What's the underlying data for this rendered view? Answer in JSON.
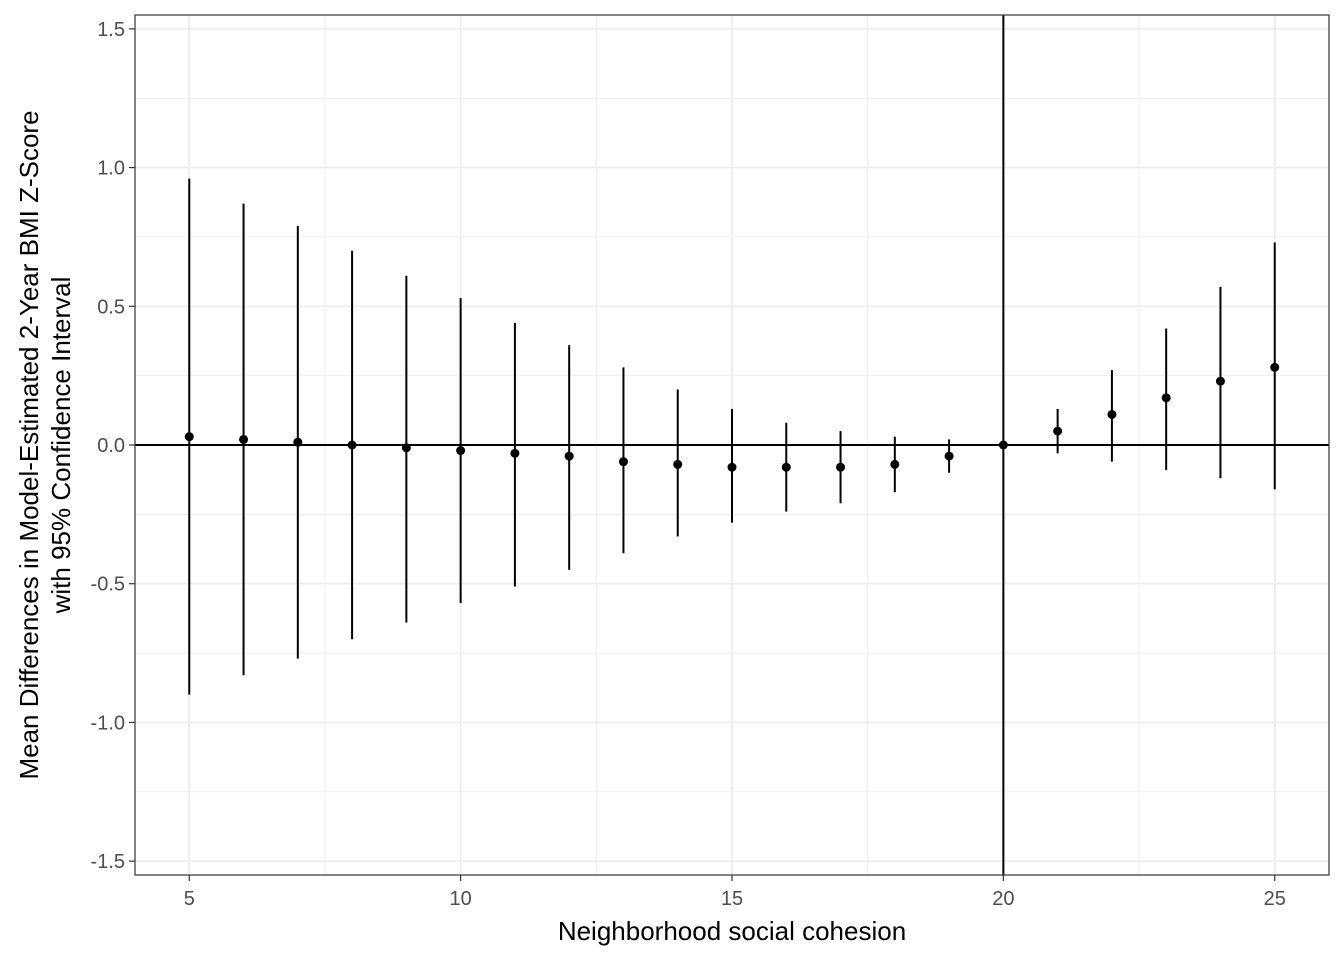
{
  "chart_data": {
    "type": "scatter",
    "title": "",
    "xlabel": "Neighborhood social cohesion",
    "ylabel_lines": [
      "Mean Differences in Model-Estimated 2-Year BMI Z-Score",
      "with 95% Confidence Interval"
    ],
    "xlim": [
      4,
      26
    ],
    "ylim": [
      -1.55,
      1.55
    ],
    "x_ticks": [
      5,
      10,
      15,
      20,
      25
    ],
    "x_tick_labels": [
      "5",
      "10",
      "15",
      "20",
      "25"
    ],
    "y_ticks": [
      -1.5,
      -1.0,
      -0.5,
      0.0,
      0.5,
      1.0,
      1.5
    ],
    "y_tick_labels": [
      "-1.5",
      "-1.0",
      "-0.5",
      "0.0",
      "0.5",
      "1.0",
      "1.5"
    ],
    "grid": true,
    "reference_lines": {
      "vertical_x": 20,
      "horizontal_y": 0
    },
    "colors": {
      "points": "#000000",
      "grid": "#ebebeb",
      "panel_border": "#333333"
    },
    "series": [
      {
        "points": [
          {
            "x": 5,
            "y": 0.03,
            "lower": -0.9,
            "upper": 0.96
          },
          {
            "x": 6,
            "y": 0.02,
            "lower": -0.83,
            "upper": 0.87
          },
          {
            "x": 7,
            "y": 0.01,
            "lower": -0.77,
            "upper": 0.79
          },
          {
            "x": 8,
            "y": 0.0,
            "lower": -0.7,
            "upper": 0.7
          },
          {
            "x": 9,
            "y": -0.01,
            "lower": -0.64,
            "upper": 0.61
          },
          {
            "x": 10,
            "y": -0.02,
            "lower": -0.57,
            "upper": 0.53
          },
          {
            "x": 11,
            "y": -0.03,
            "lower": -0.51,
            "upper": 0.44
          },
          {
            "x": 12,
            "y": -0.04,
            "lower": -0.45,
            "upper": 0.36
          },
          {
            "x": 13,
            "y": -0.06,
            "lower": -0.39,
            "upper": 0.28
          },
          {
            "x": 14,
            "y": -0.07,
            "lower": -0.33,
            "upper": 0.2
          },
          {
            "x": 15,
            "y": -0.08,
            "lower": -0.28,
            "upper": 0.13
          },
          {
            "x": 16,
            "y": -0.08,
            "lower": -0.24,
            "upper": 0.08
          },
          {
            "x": 17,
            "y": -0.08,
            "lower": -0.21,
            "upper": 0.05
          },
          {
            "x": 18,
            "y": -0.07,
            "lower": -0.17,
            "upper": 0.03
          },
          {
            "x": 19,
            "y": -0.04,
            "lower": -0.1,
            "upper": 0.02
          },
          {
            "x": 20,
            "y": 0.0,
            "lower": 0.0,
            "upper": 0.0
          },
          {
            "x": 21,
            "y": 0.05,
            "lower": -0.03,
            "upper": 0.13
          },
          {
            "x": 22,
            "y": 0.11,
            "lower": -0.06,
            "upper": 0.27
          },
          {
            "x": 23,
            "y": 0.17,
            "lower": -0.09,
            "upper": 0.42
          },
          {
            "x": 24,
            "y": 0.23,
            "lower": -0.12,
            "upper": 0.57
          },
          {
            "x": 25,
            "y": 0.28,
            "lower": -0.16,
            "upper": 0.73
          }
        ]
      }
    ]
  }
}
